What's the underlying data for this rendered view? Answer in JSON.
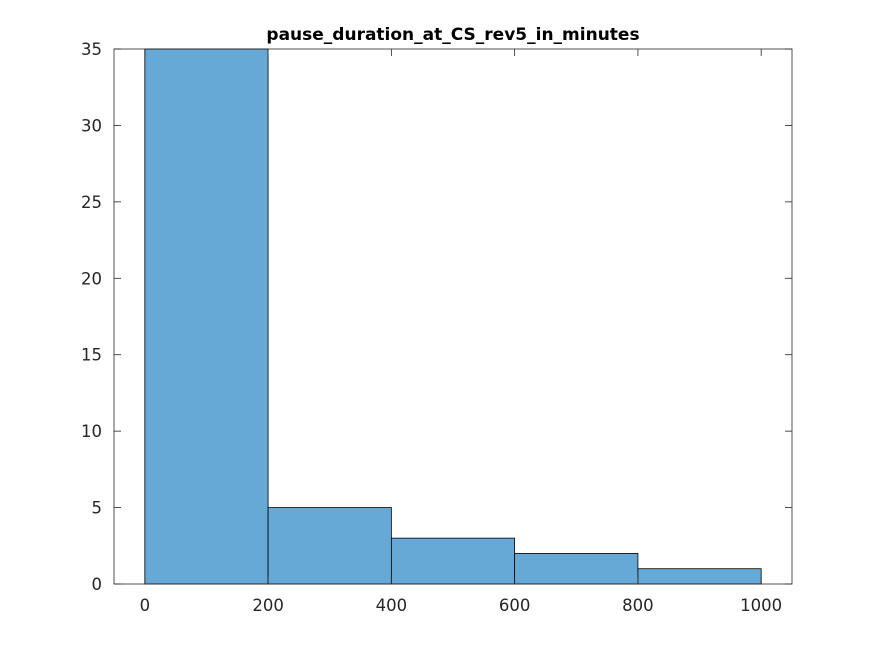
{
  "chart_data": {
    "type": "bar",
    "title": "pause_duration_at_CS_rev5_in_minutes",
    "xlabel": "",
    "ylabel": "",
    "bins": [
      {
        "start": 0,
        "end": 200,
        "count": 35
      },
      {
        "start": 200,
        "end": 400,
        "count": 5
      },
      {
        "start": 400,
        "end": 600,
        "count": 3
      },
      {
        "start": 600,
        "end": 800,
        "count": 2
      },
      {
        "start": 800,
        "end": 1000,
        "count": 1
      }
    ],
    "xlim": [
      -50,
      1050
    ],
    "ylim": [
      0,
      35
    ],
    "xticks": [
      "0",
      "200",
      "400",
      "600",
      "800",
      "1000"
    ],
    "yticks": [
      "0",
      "5",
      "10",
      "15",
      "20",
      "25",
      "30",
      "35"
    ],
    "grid": false,
    "legend": "none",
    "colors": {
      "bar_fill": "#66a9d7",
      "bar_edge": "#000000",
      "axis": "#262626"
    }
  }
}
